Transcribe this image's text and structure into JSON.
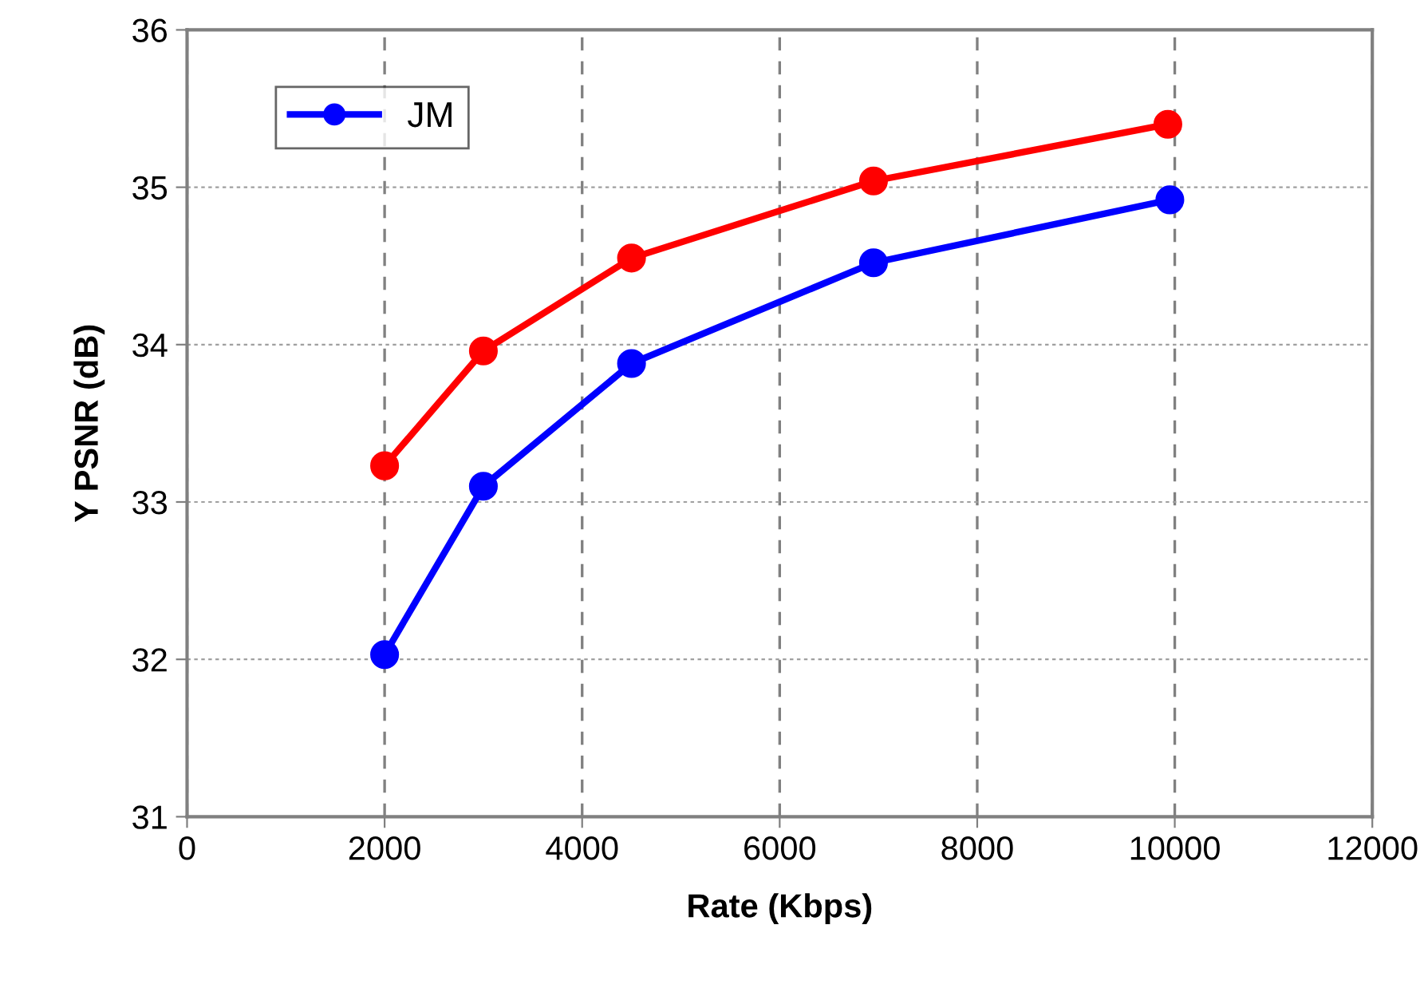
{
  "chart_data": {
    "type": "line",
    "xlabel": "Rate (Kbps)",
    "ylabel": "Y PSNR (dB)",
    "series": [
      {
        "color": "#ff0000",
        "x": [
          2000,
          3000,
          4500,
          6950,
          9930
        ],
        "values": [
          33.23,
          33.96,
          34.55,
          35.04,
          35.4
        ]
      },
      {
        "name": "JM",
        "color": "#0000ff",
        "x": [
          2000,
          3000,
          4500,
          6950,
          9950
        ],
        "values": [
          32.03,
          33.1,
          33.88,
          34.52,
          34.92
        ]
      }
    ],
    "xlim": [
      0,
      12000
    ],
    "xticks": [
      0,
      2000,
      4000,
      6000,
      8000,
      10000,
      12000
    ],
    "ylim": [
      31,
      36
    ],
    "yticks": [
      31,
      32,
      33,
      34,
      35,
      36
    ],
    "grid": true,
    "legend": "top left",
    "marker": "circle",
    "line_style": "solid"
  }
}
